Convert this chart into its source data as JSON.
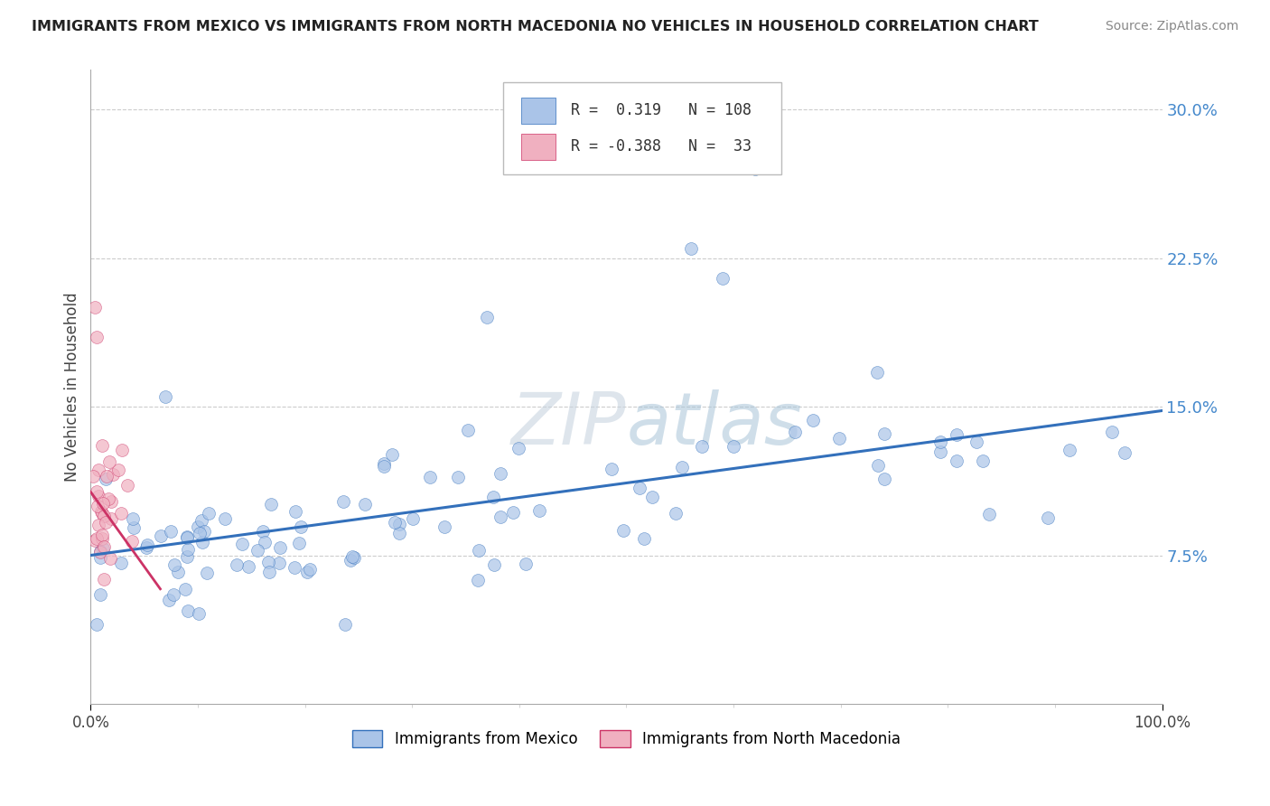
{
  "title": "IMMIGRANTS FROM MEXICO VS IMMIGRANTS FROM NORTH MACEDONIA NO VEHICLES IN HOUSEHOLD CORRELATION CHART",
  "source": "Source: ZipAtlas.com",
  "ylabel": "No Vehicles in Household",
  "xlim": [
    0.0,
    1.0
  ],
  "ylim": [
    0.0,
    0.32
  ],
  "xtick_labels": [
    "0.0%",
    "100.0%"
  ],
  "ytick_labels": [
    "7.5%",
    "15.0%",
    "22.5%",
    "30.0%"
  ],
  "ytick_values": [
    0.075,
    0.15,
    0.225,
    0.3
  ],
  "r_mexico": 0.319,
  "n_mexico": 108,
  "r_macedonia": -0.388,
  "n_macedonia": 33,
  "color_mexico": "#aac4e8",
  "color_macedonia": "#f0b0c0",
  "line_color_mexico": "#3370bb",
  "line_color_macedonia": "#cc3366",
  "watermark_zip": "ZIP",
  "watermark_atlas": "atlas",
  "mexico_line_x0": 0.0,
  "mexico_line_y0": 0.075,
  "mexico_line_x1": 1.0,
  "mexico_line_y1": 0.148,
  "macedonia_line_x0": 0.0,
  "macedonia_line_y0": 0.107,
  "macedonia_line_x1": 0.065,
  "macedonia_line_y1": 0.058
}
